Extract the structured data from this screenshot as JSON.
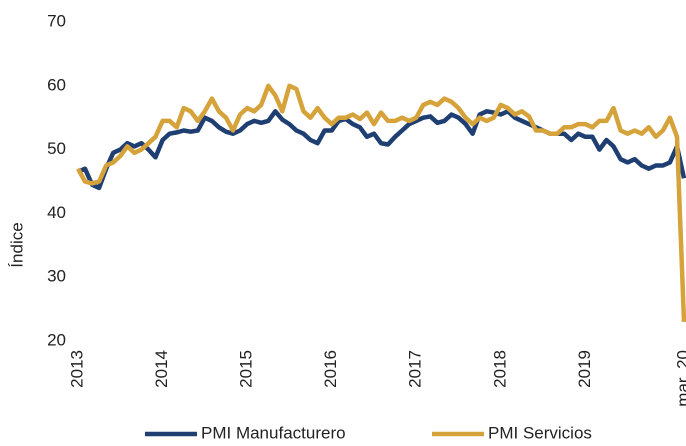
{
  "chart_data": {
    "type": "line",
    "y_label": "Índice",
    "categories": [
      "2013",
      null,
      null,
      null,
      null,
      null,
      null,
      null,
      null,
      null,
      null,
      null,
      "2014",
      null,
      null,
      null,
      null,
      null,
      null,
      null,
      null,
      null,
      null,
      null,
      "2015",
      null,
      null,
      null,
      null,
      null,
      null,
      null,
      null,
      null,
      null,
      null,
      "2016",
      null,
      null,
      null,
      null,
      null,
      null,
      null,
      null,
      null,
      null,
      null,
      "2017",
      null,
      null,
      null,
      null,
      null,
      null,
      null,
      null,
      null,
      null,
      null,
      "2018",
      null,
      null,
      null,
      null,
      null,
      null,
      null,
      null,
      null,
      null,
      null,
      "2019",
      null,
      null,
      null,
      null,
      null,
      null,
      null,
      null,
      null,
      null,
      null,
      null,
      null,
      "mar. 20"
    ],
    "series": [
      {
        "name": "PMI Manufacturero",
        "color": "#1f3f73",
        "values": [
          46.5,
          47,
          44.5,
          44,
          47,
          49.5,
          50,
          51,
          50.5,
          51,
          50,
          48.8,
          51.5,
          52.5,
          52.7,
          53,
          52.8,
          53,
          55,
          54.5,
          53.5,
          52.8,
          52.5,
          53,
          54,
          54.5,
          54.2,
          54.5,
          56,
          54.7,
          54,
          53,
          52.5,
          51.5,
          51,
          53,
          53,
          54.5,
          54.8,
          54,
          53.5,
          52,
          52.5,
          51,
          50.8,
          52,
          53,
          54,
          54.5,
          55,
          55.2,
          54.2,
          54.5,
          55.5,
          55,
          54,
          52.5,
          55.5,
          56,
          55.8,
          55.5,
          56,
          55,
          54.5,
          54,
          53.5,
          53,
          52.5,
          52.5,
          52.5,
          51.5,
          52.5,
          52,
          52,
          50,
          51.5,
          50.5,
          48.5,
          48,
          48.5,
          47.5,
          47,
          47.5,
          47.5,
          48,
          50.5,
          45.5
        ]
      },
      {
        "name": "PMI Servicios",
        "color": "#d6a23a",
        "values": [
          47,
          45,
          44.7,
          45,
          47.5,
          48,
          49,
          50.5,
          49.5,
          50,
          51,
          52,
          54.5,
          54.5,
          53.5,
          56.5,
          56,
          54.5,
          56,
          58,
          56,
          55,
          53,
          55.5,
          56.5,
          56,
          57,
          60,
          58.5,
          56,
          60,
          59.5,
          56,
          55,
          56.5,
          55,
          54,
          55,
          55,
          55.5,
          54.8,
          55.8,
          54,
          55.8,
          54.5,
          54.5,
          55,
          54.5,
          55,
          57,
          57.5,
          57,
          58,
          57.5,
          56.5,
          55,
          54,
          55,
          54.5,
          55,
          57,
          56.5,
          55.5,
          56,
          55.2,
          53,
          53,
          52.5,
          52.5,
          53.5,
          53.5,
          54,
          54,
          53.5,
          54.5,
          54.5,
          56.5,
          53,
          52.5,
          53,
          52.5,
          53.5,
          52,
          53,
          55,
          52,
          23
        ]
      }
    ],
    "ylim": [
      20,
      70
    ],
    "yticks": [
      20,
      30,
      40,
      50,
      60,
      70
    ],
    "grid": false,
    "legend": "bottom"
  }
}
